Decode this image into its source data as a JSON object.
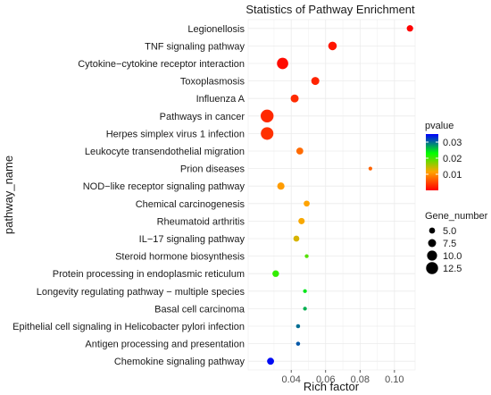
{
  "chart_data": {
    "type": "scatter",
    "title": "Statistics of Pathway Enrichment",
    "xlabel": "Rich factor",
    "ylabel": "pathway_name",
    "xlim": [
      0.015,
      0.112
    ],
    "x_ticks": [
      0.04,
      0.06,
      0.08,
      0.1
    ],
    "x_tick_labels": [
      "0.04",
      "0.06",
      "0.08",
      "0.10"
    ],
    "grid": true,
    "legend_position": "right",
    "categories": [
      "Legionellosis",
      "TNF signaling pathway",
      "Cytokine−cytokine receptor interaction",
      "Toxoplasmosis",
      "Influenza A",
      "Pathways in cancer",
      "Herpes simplex virus 1 infection",
      "Leukocyte transendothelial migration",
      "Prion diseases",
      "NOD−like receptor signaling pathway",
      "Chemical carcinogenesis",
      "Rheumatoid arthritis",
      "IL−17 signaling pathway",
      "Steroid hormone biosynthesis",
      "Protein processing in endoplasmic reticulum",
      "Longevity regulating pathway − multiple species",
      "Basal cell carcinoma",
      "Epithelial cell signaling in Helicobacter pylori infection",
      "Antigen processing and presentation",
      "Chemokine signaling pathway"
    ],
    "points": [
      {
        "rich_factor": 0.109,
        "pvalue": 0.0002,
        "gene_number": 5.6
      },
      {
        "rich_factor": 0.064,
        "pvalue": 0.0015,
        "gene_number": 8.2
      },
      {
        "rich_factor": 0.035,
        "pvalue": 0.0008,
        "gene_number": 11.6
      },
      {
        "rich_factor": 0.054,
        "pvalue": 0.0025,
        "gene_number": 7.5
      },
      {
        "rich_factor": 0.042,
        "pvalue": 0.003,
        "gene_number": 7.5
      },
      {
        "rich_factor": 0.026,
        "pvalue": 0.0028,
        "gene_number": 13.6
      },
      {
        "rich_factor": 0.026,
        "pvalue": 0.0035,
        "gene_number": 13.2
      },
      {
        "rich_factor": 0.045,
        "pvalue": 0.0075,
        "gene_number": 6.2
      },
      {
        "rich_factor": 0.086,
        "pvalue": 0.007,
        "gene_number": 2.2
      },
      {
        "rich_factor": 0.034,
        "pvalue": 0.011,
        "gene_number": 6.6
      },
      {
        "rich_factor": 0.049,
        "pvalue": 0.0115,
        "gene_number": 5.0
      },
      {
        "rich_factor": 0.046,
        "pvalue": 0.012,
        "gene_number": 5.5
      },
      {
        "rich_factor": 0.043,
        "pvalue": 0.0135,
        "gene_number": 5.0
      },
      {
        "rich_factor": 0.049,
        "pvalue": 0.0195,
        "gene_number": 2.3
      },
      {
        "rich_factor": 0.031,
        "pvalue": 0.021,
        "gene_number": 5.8
      },
      {
        "rich_factor": 0.048,
        "pvalue": 0.0245,
        "gene_number": 2.3
      },
      {
        "rich_factor": 0.048,
        "pvalue": 0.027,
        "gene_number": 2.3
      },
      {
        "rich_factor": 0.044,
        "pvalue": 0.03,
        "gene_number": 2.6
      },
      {
        "rich_factor": 0.044,
        "pvalue": 0.031,
        "gene_number": 2.6
      },
      {
        "rich_factor": 0.028,
        "pvalue": 0.0345,
        "gene_number": 6.2
      }
    ],
    "color_legend": {
      "title": "pvalue",
      "range": [
        0,
        0.035
      ],
      "ticks": [
        0.01,
        0.02,
        0.03
      ],
      "tick_labels": [
        "0.01",
        "0.02",
        "0.03"
      ],
      "colors": [
        "#ff0000",
        "#ffa500",
        "#00ff00",
        "#0000ff"
      ]
    },
    "size_legend": {
      "title": "Gene_number",
      "values": [
        5.0,
        7.5,
        10.0,
        12.5
      ],
      "labels": [
        "5.0",
        "7.5",
        "10.0",
        "12.5"
      ]
    }
  }
}
